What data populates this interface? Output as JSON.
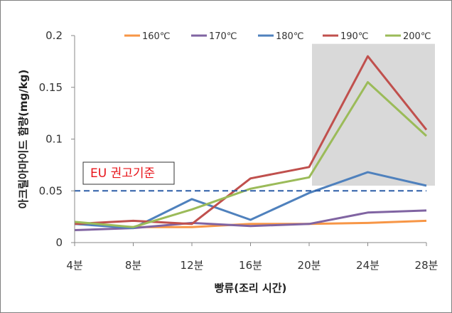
{
  "chart_data": {
    "type": "line",
    "title": "",
    "xlabel": "빵류(조리 시간)",
    "ylabel": "아크릴아마이드 함량(mg/kg)",
    "categories": [
      "4분",
      "8분",
      "12분",
      "16분",
      "20분",
      "24분",
      "28분"
    ],
    "ylim": [
      0,
      0.2
    ],
    "yticks": [
      "0",
      "0.05",
      "0.1",
      "0.15",
      "0.2"
    ],
    "grid": false,
    "legend_position": "top",
    "series": [
      {
        "name": "160℃",
        "color": "#f79646",
        "values": [
          0.018,
          0.015,
          0.015,
          0.018,
          0.018,
          0.019,
          0.021
        ]
      },
      {
        "name": "170℃",
        "color": "#8064a2",
        "values": [
          0.012,
          0.014,
          0.019,
          0.016,
          0.018,
          0.029,
          0.031
        ]
      },
      {
        "name": "180℃",
        "color": "#4f81bd",
        "values": [
          0.018,
          0.014,
          0.042,
          0.022,
          0.048,
          0.068,
          0.055
        ]
      },
      {
        "name": "190℃",
        "color": "#c0504d",
        "values": [
          0.018,
          0.021,
          0.018,
          0.062,
          0.073,
          0.18,
          0.109
        ]
      },
      {
        "name": "200℃",
        "color": "#9bbb59",
        "values": [
          0.02,
          0.015,
          0.032,
          0.052,
          0.063,
          0.155,
          0.103
        ]
      }
    ],
    "reference_line": {
      "label": "EU 권고기준",
      "value": 0.05,
      "color": "#2e5fa8"
    },
    "highlight_region": {
      "x_from": "20분",
      "x_to": "28분",
      "y_from": 0.055,
      "y_to": 0.192,
      "color": "#d9d9d9"
    }
  }
}
